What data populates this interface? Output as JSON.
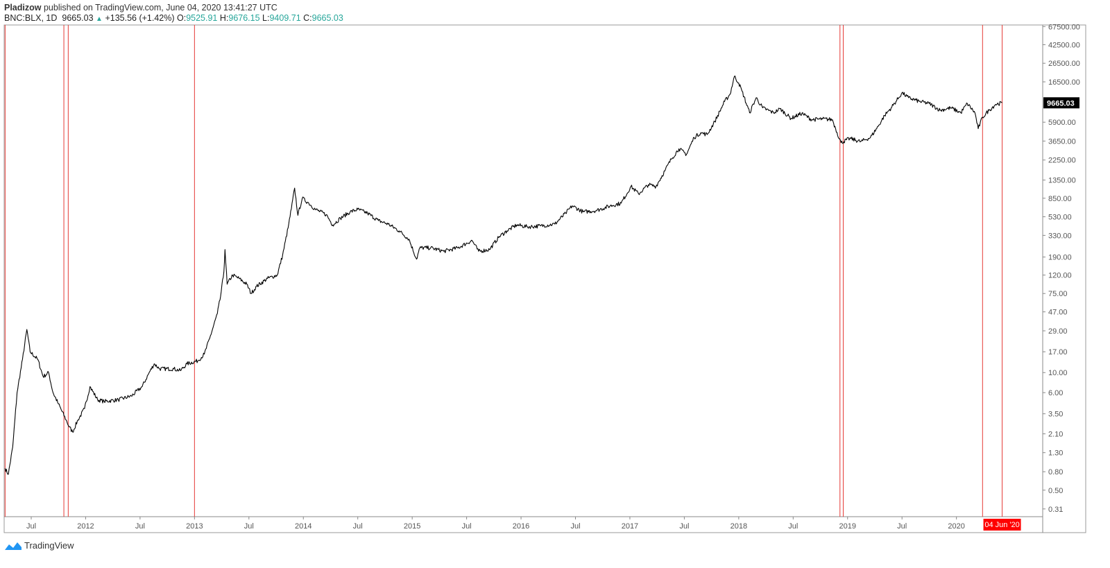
{
  "header": {
    "author": "Pladizow",
    "published_text": "published on TradingView.com, June 04, 2020 13:41:27 UTC",
    "symbol": "BNC:BLX, 1D",
    "last": "9665.03",
    "change": "+135.56 (+1.42%)",
    "o_label": "O:",
    "o": "9525.91",
    "h_label": "H:",
    "h": "9676.15",
    "l_label": "L:",
    "l": "9409.71",
    "c_label": "C:",
    "c": "9665.03"
  },
  "footer": {
    "brand": "TradingView"
  },
  "colors": {
    "line": "#000000",
    "marker": "#e53935",
    "up": "#26a69a",
    "axis": "#888888"
  },
  "chart_data": {
    "type": "line",
    "title": "BNC:BLX, 1D",
    "yscale": "log",
    "ylim": [
      0.25,
      75000
    ],
    "xlim": [
      2011.24,
      2020.98
    ],
    "y_ticks": [
      "67500.00",
      "42500.00",
      "26500.00",
      "16500.00",
      "5900.00",
      "3650.00",
      "2250.00",
      "1350.00",
      "850.00",
      "530.00",
      "330.00",
      "190.00",
      "120.00",
      "75.00",
      "47.00",
      "29.00",
      "17.00",
      "10.00",
      "6.00",
      "3.50",
      "2.10",
      "1.30",
      "0.80",
      "0.50",
      "0.31"
    ],
    "x_ticks": [
      {
        "label": "Jul",
        "t": 2011.5
      },
      {
        "label": "2012",
        "t": 2012.0
      },
      {
        "label": "Jul",
        "t": 2012.5
      },
      {
        "label": "2013",
        "t": 2013.0
      },
      {
        "label": "Jul",
        "t": 2013.5
      },
      {
        "label": "2014",
        "t": 2014.0
      },
      {
        "label": "Jul",
        "t": 2014.5
      },
      {
        "label": "2015",
        "t": 2015.0
      },
      {
        "label": "Jul",
        "t": 2015.5
      },
      {
        "label": "2016",
        "t": 2016.0
      },
      {
        "label": "Jul",
        "t": 2016.5
      },
      {
        "label": "2017",
        "t": 2017.0
      },
      {
        "label": "Jul",
        "t": 2017.5
      },
      {
        "label": "2018",
        "t": 2018.0
      },
      {
        "label": "Jul",
        "t": 2018.5
      },
      {
        "label": "2019",
        "t": 2019.0
      },
      {
        "label": "Jul",
        "t": 2019.5
      },
      {
        "label": "2020",
        "t": 2020.0
      }
    ],
    "last_price_label": "9665.03",
    "last_price": 9665.03,
    "current_date_label": "04 Jun '20",
    "current_date": 2020.42,
    "vertical_markers": [
      2011.26,
      2011.8,
      2011.84,
      2013.0,
      2018.93,
      2018.96,
      2020.24,
      2020.42
    ],
    "series": [
      {
        "name": "BNC:BLX",
        "points": [
          [
            2011.26,
            0.87
          ],
          [
            2011.29,
            0.75
          ],
          [
            2011.33,
            1.5
          ],
          [
            2011.37,
            6
          ],
          [
            2011.42,
            14
          ],
          [
            2011.46,
            30
          ],
          [
            2011.49,
            17
          ],
          [
            2011.56,
            14
          ],
          [
            2011.61,
            9
          ],
          [
            2011.66,
            10
          ],
          [
            2011.7,
            6
          ],
          [
            2011.75,
            4.5
          ],
          [
            2011.82,
            3
          ],
          [
            2011.85,
            2.5
          ],
          [
            2011.88,
            2.2
          ],
          [
            2011.93,
            3
          ],
          [
            2011.99,
            4
          ],
          [
            2012.04,
            7
          ],
          [
            2012.11,
            5
          ],
          [
            2012.17,
            4.8
          ],
          [
            2012.3,
            5
          ],
          [
            2012.42,
            5.5
          ],
          [
            2012.52,
            7
          ],
          [
            2012.58,
            9.8
          ],
          [
            2012.63,
            12.5
          ],
          [
            2012.68,
            11
          ],
          [
            2012.81,
            11
          ],
          [
            2012.87,
            10.5
          ],
          [
            2012.93,
            12.5
          ],
          [
            2013.03,
            13.5
          ],
          [
            2013.09,
            16
          ],
          [
            2013.14,
            24
          ],
          [
            2013.21,
            45
          ],
          [
            2013.24,
            70
          ],
          [
            2013.27,
            130
          ],
          [
            2013.28,
            230
          ],
          [
            2013.3,
            95
          ],
          [
            2013.35,
            120
          ],
          [
            2013.41,
            110
          ],
          [
            2013.48,
            95
          ],
          [
            2013.52,
            75
          ],
          [
            2013.57,
            90
          ],
          [
            2013.67,
            110
          ],
          [
            2013.76,
            120
          ],
          [
            2013.81,
            200
          ],
          [
            2013.86,
            400
          ],
          [
            2013.89,
            650
          ],
          [
            2013.92,
            1100
          ],
          [
            2013.95,
            550
          ],
          [
            2013.99,
            850
          ],
          [
            2014.05,
            750
          ],
          [
            2014.11,
            640
          ],
          [
            2014.21,
            560
          ],
          [
            2014.27,
            430
          ],
          [
            2014.34,
            510
          ],
          [
            2014.43,
            600
          ],
          [
            2014.5,
            640
          ],
          [
            2014.59,
            580
          ],
          [
            2014.69,
            480
          ],
          [
            2014.78,
            440
          ],
          [
            2014.88,
            370
          ],
          [
            2014.97,
            300
          ],
          [
            2015.04,
            180
          ],
          [
            2015.07,
            240
          ],
          [
            2015.17,
            240
          ],
          [
            2015.29,
            220
          ],
          [
            2015.42,
            240
          ],
          [
            2015.55,
            290
          ],
          [
            2015.61,
            220
          ],
          [
            2015.71,
            230
          ],
          [
            2015.8,
            320
          ],
          [
            2015.87,
            370
          ],
          [
            2015.96,
            430
          ],
          [
            2016.06,
            410
          ],
          [
            2016.18,
            420
          ],
          [
            2016.31,
            440
          ],
          [
            2016.41,
            580
          ],
          [
            2016.47,
            700
          ],
          [
            2016.57,
            600
          ],
          [
            2016.69,
            620
          ],
          [
            2016.82,
            700
          ],
          [
            2016.92,
            750
          ],
          [
            2017.01,
            1150
          ],
          [
            2017.08,
            950
          ],
          [
            2017.17,
            1200
          ],
          [
            2017.24,
            1150
          ],
          [
            2017.32,
            1700
          ],
          [
            2017.38,
            2300
          ],
          [
            2017.45,
            3000
          ],
          [
            2017.52,
            2600
          ],
          [
            2017.59,
            4000
          ],
          [
            2017.65,
            4500
          ],
          [
            2017.71,
            4300
          ],
          [
            2017.78,
            6000
          ],
          [
            2017.87,
            10000
          ],
          [
            2017.92,
            12000
          ],
          [
            2017.96,
            19000
          ],
          [
            2018.0,
            16000
          ],
          [
            2018.03,
            13000
          ],
          [
            2018.1,
            7500
          ],
          [
            2018.16,
            11000
          ],
          [
            2018.22,
            8500
          ],
          [
            2018.32,
            7500
          ],
          [
            2018.38,
            8300
          ],
          [
            2018.48,
            6500
          ],
          [
            2018.58,
            7400
          ],
          [
            2018.67,
            6300
          ],
          [
            2018.77,
            6400
          ],
          [
            2018.86,
            6300
          ],
          [
            2018.89,
            5000
          ],
          [
            2018.94,
            3500
          ],
          [
            2019.02,
            3900
          ],
          [
            2019.12,
            3600
          ],
          [
            2019.21,
            4000
          ],
          [
            2019.28,
            5300
          ],
          [
            2019.34,
            7000
          ],
          [
            2019.4,
            8500
          ],
          [
            2019.47,
            11000
          ],
          [
            2019.5,
            12500
          ],
          [
            2019.56,
            11000
          ],
          [
            2019.66,
            10000
          ],
          [
            2019.75,
            9500
          ],
          [
            2019.85,
            8000
          ],
          [
            2019.95,
            8500
          ],
          [
            2020.04,
            7500
          ],
          [
            2020.1,
            9500
          ],
          [
            2020.17,
            7500
          ],
          [
            2020.2,
            5000
          ],
          [
            2020.24,
            6700
          ],
          [
            2020.3,
            8000
          ],
          [
            2020.36,
            9300
          ],
          [
            2020.42,
            9665.03
          ]
        ]
      }
    ]
  }
}
